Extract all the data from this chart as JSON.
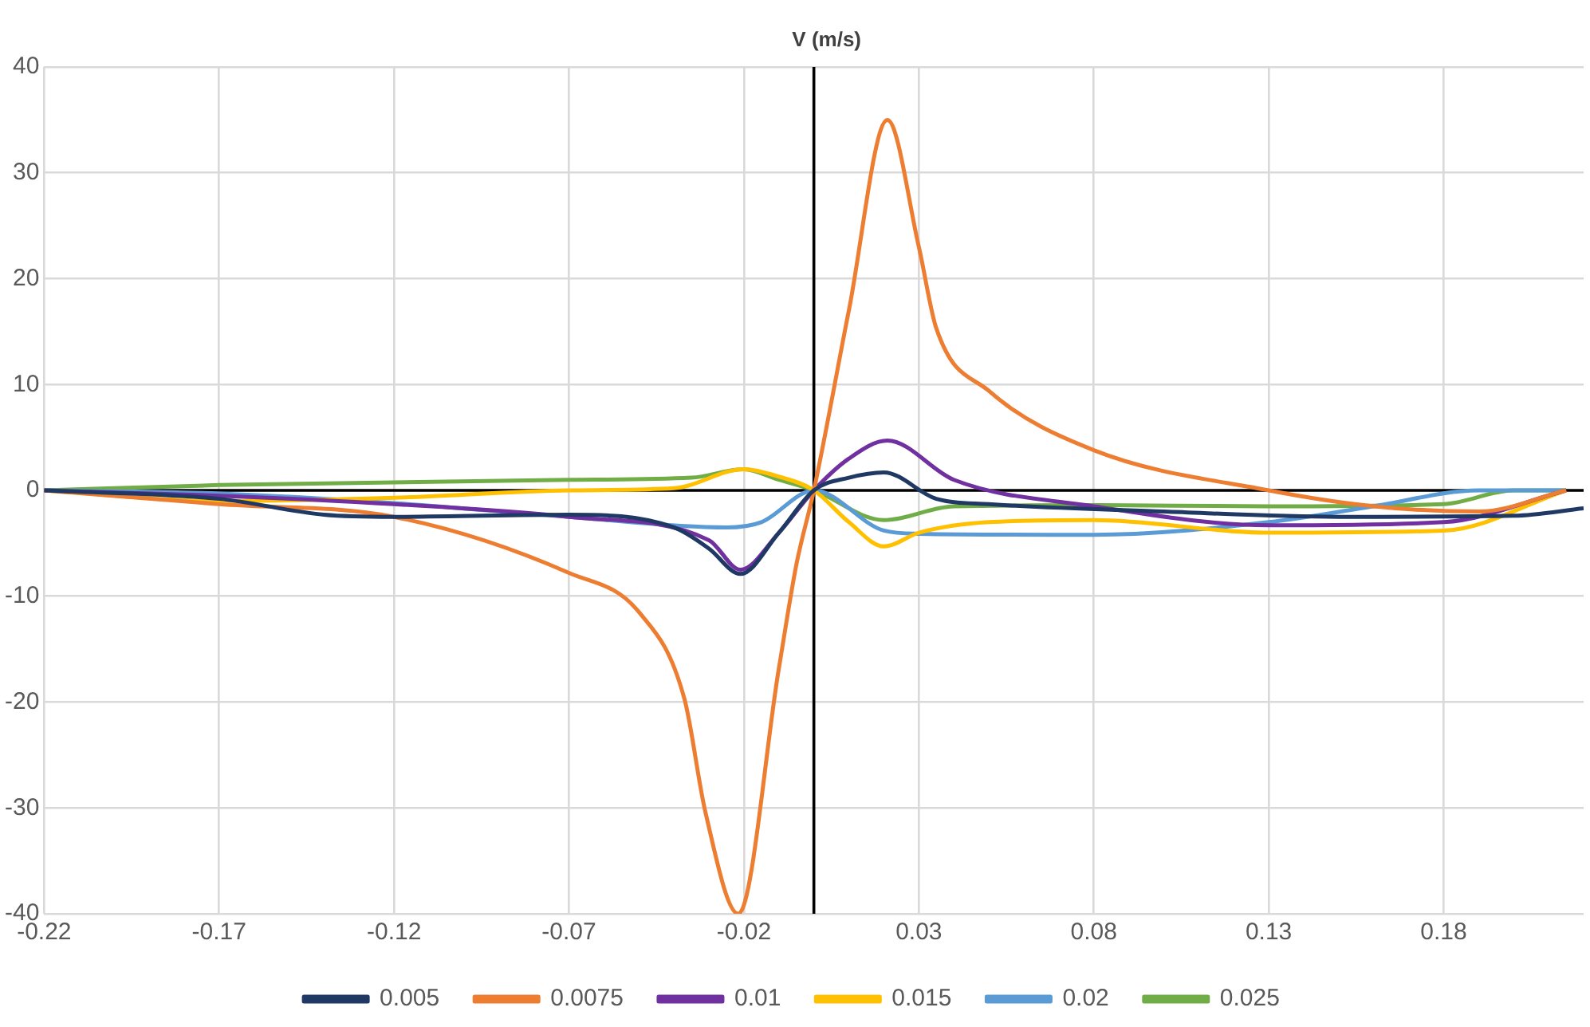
{
  "chart_data": {
    "type": "line",
    "ylabel": "V (m/s)",
    "xlim": [
      -0.22,
      0.22
    ],
    "xticks": [
      -0.22,
      -0.17,
      -0.12,
      -0.07,
      -0.02,
      0.03,
      0.08,
      0.13,
      0.18
    ],
    "ylim": [
      -40,
      40
    ],
    "yticks": [
      -40,
      -30,
      -20,
      -10,
      0,
      10,
      20,
      30,
      40
    ],
    "grid": true,
    "legend": "bottom",
    "marker": "none",
    "line_style": "solid",
    "series": [
      {
        "name": "0.005",
        "color": "#1f3864",
        "x": [
          -0.22,
          -0.17,
          -0.14,
          -0.12,
          -0.07,
          -0.04,
          -0.03,
          -0.021,
          -0.01,
          0,
          0.01,
          0.02,
          0.035,
          0.05,
          0.1,
          0.15,
          0.2,
          0.22
        ],
        "values": [
          0,
          -0.8,
          -2.3,
          -2.5,
          -2.3,
          -3.5,
          -5.5,
          -7.9,
          -4,
          0,
          1.2,
          1.7,
          -0.8,
          -1.3,
          -2,
          -2.5,
          -2.4,
          -1.7
        ]
      },
      {
        "name": "0.0075",
        "color": "#ed7d31",
        "x": [
          -0.22,
          -0.17,
          -0.12,
          -0.07,
          -0.05,
          -0.037,
          -0.031,
          -0.0216,
          -0.01,
          -0.005,
          0,
          0.01,
          0.021,
          0.03,
          0.035,
          0.05,
          0.08,
          0.13,
          0.16,
          0.19,
          0.215
        ],
        "values": [
          0,
          -1.3,
          -2.5,
          -7.8,
          -11.5,
          -19.7,
          -30.4,
          -40,
          -16.8,
          -7,
          0,
          17,
          35,
          23,
          15.3,
          9.4,
          3.8,
          0,
          -1.5,
          -2,
          0
        ]
      },
      {
        "name": "0.01",
        "color": "#7030a0",
        "x": [
          -0.22,
          -0.17,
          -0.12,
          -0.07,
          -0.03,
          -0.021,
          -0.01,
          0,
          0.01,
          0.021,
          0.04,
          0.08,
          0.13,
          0.18,
          0.215
        ],
        "values": [
          0,
          -0.5,
          -1.3,
          -2.5,
          -4.7,
          -7.5,
          -4,
          0,
          3,
          4.7,
          1,
          -1.5,
          -3.3,
          -3,
          0
        ]
      },
      {
        "name": "0.015",
        "color": "#ffc000",
        "x": [
          -0.22,
          -0.17,
          -0.12,
          -0.07,
          -0.04,
          -0.02,
          -0.01,
          0,
          0.01,
          0.02,
          0.03,
          0.05,
          0.08,
          0.13,
          0.18,
          0.215
        ],
        "values": [
          0,
          -1,
          -0.7,
          0,
          0.2,
          2,
          1.3,
          0,
          -3,
          -5.3,
          -4,
          -3,
          -2.8,
          -4,
          -3.8,
          0
        ]
      },
      {
        "name": "0.02",
        "color": "#5b9bd5",
        "x": [
          -0.22,
          -0.17,
          -0.12,
          -0.07,
          -0.025,
          -0.015,
          0,
          0.02,
          0.03,
          0.08,
          0.13,
          0.16,
          0.19,
          0.215
        ],
        "values": [
          0,
          -0.3,
          -1.2,
          -2.5,
          -3.5,
          -3,
          0,
          -3.8,
          -4.1,
          -4.2,
          -3,
          -1.5,
          0,
          0
        ]
      },
      {
        "name": "0.025",
        "color": "#70ad47",
        "x": [
          -0.22,
          -0.17,
          -0.07,
          -0.035,
          -0.02,
          -0.01,
          0,
          0.02,
          0.04,
          0.08,
          0.13,
          0.18,
          0.2,
          0.215
        ],
        "values": [
          0,
          0.5,
          1,
          1.2,
          2,
          1,
          0,
          -2.8,
          -1.5,
          -1.4,
          -1.5,
          -1.3,
          0,
          0
        ]
      }
    ]
  }
}
